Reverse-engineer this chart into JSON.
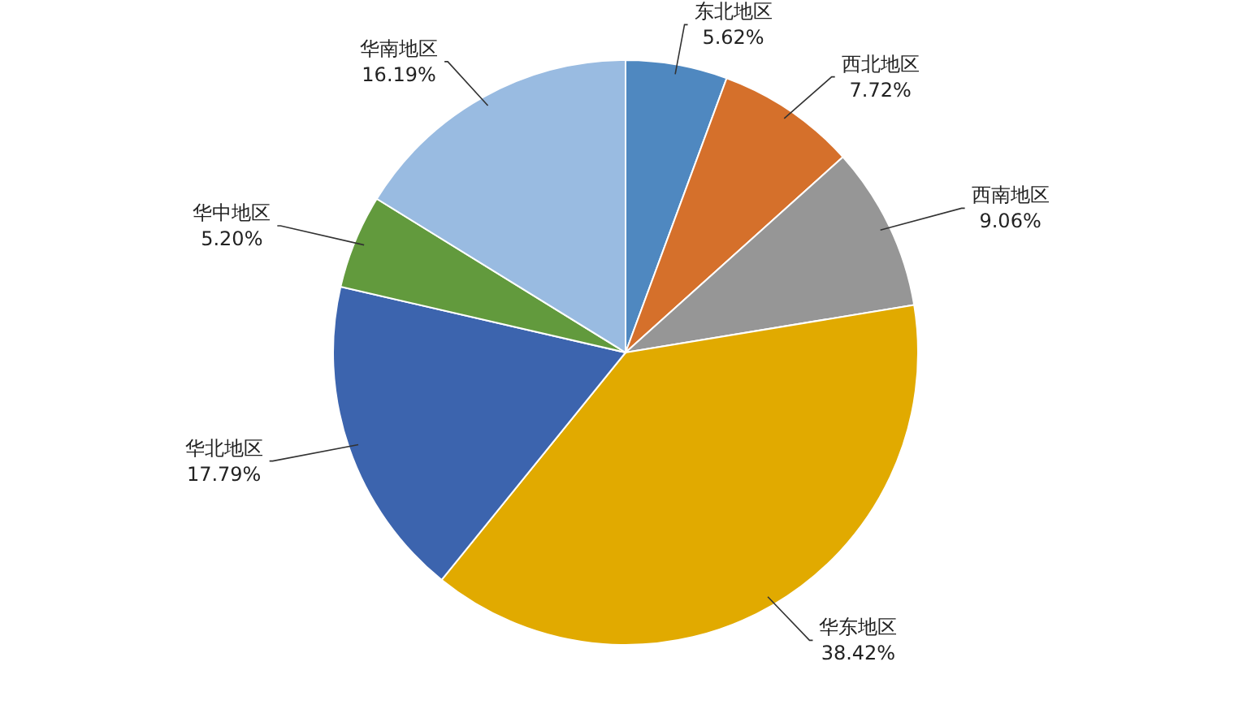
{
  "chart_data": {
    "type": "pie",
    "categories": [
      "东北地区",
      "西北地区",
      "西南地区",
      "华东地区",
      "华北地区",
      "华中地区",
      "华南地区"
    ],
    "values": [
      5.62,
      7.72,
      9.06,
      38.42,
      17.79,
      5.2,
      16.19
    ],
    "value_labels": [
      "5.62%",
      "7.72%",
      "9.06%",
      "38.42%",
      "17.79%",
      "5.20%",
      "16.19%"
    ],
    "colors": [
      "#4f88c0",
      "#d5702b",
      "#969696",
      "#e1aa00",
      "#3c64ae",
      "#629a3d",
      "#99bbe1"
    ]
  }
}
